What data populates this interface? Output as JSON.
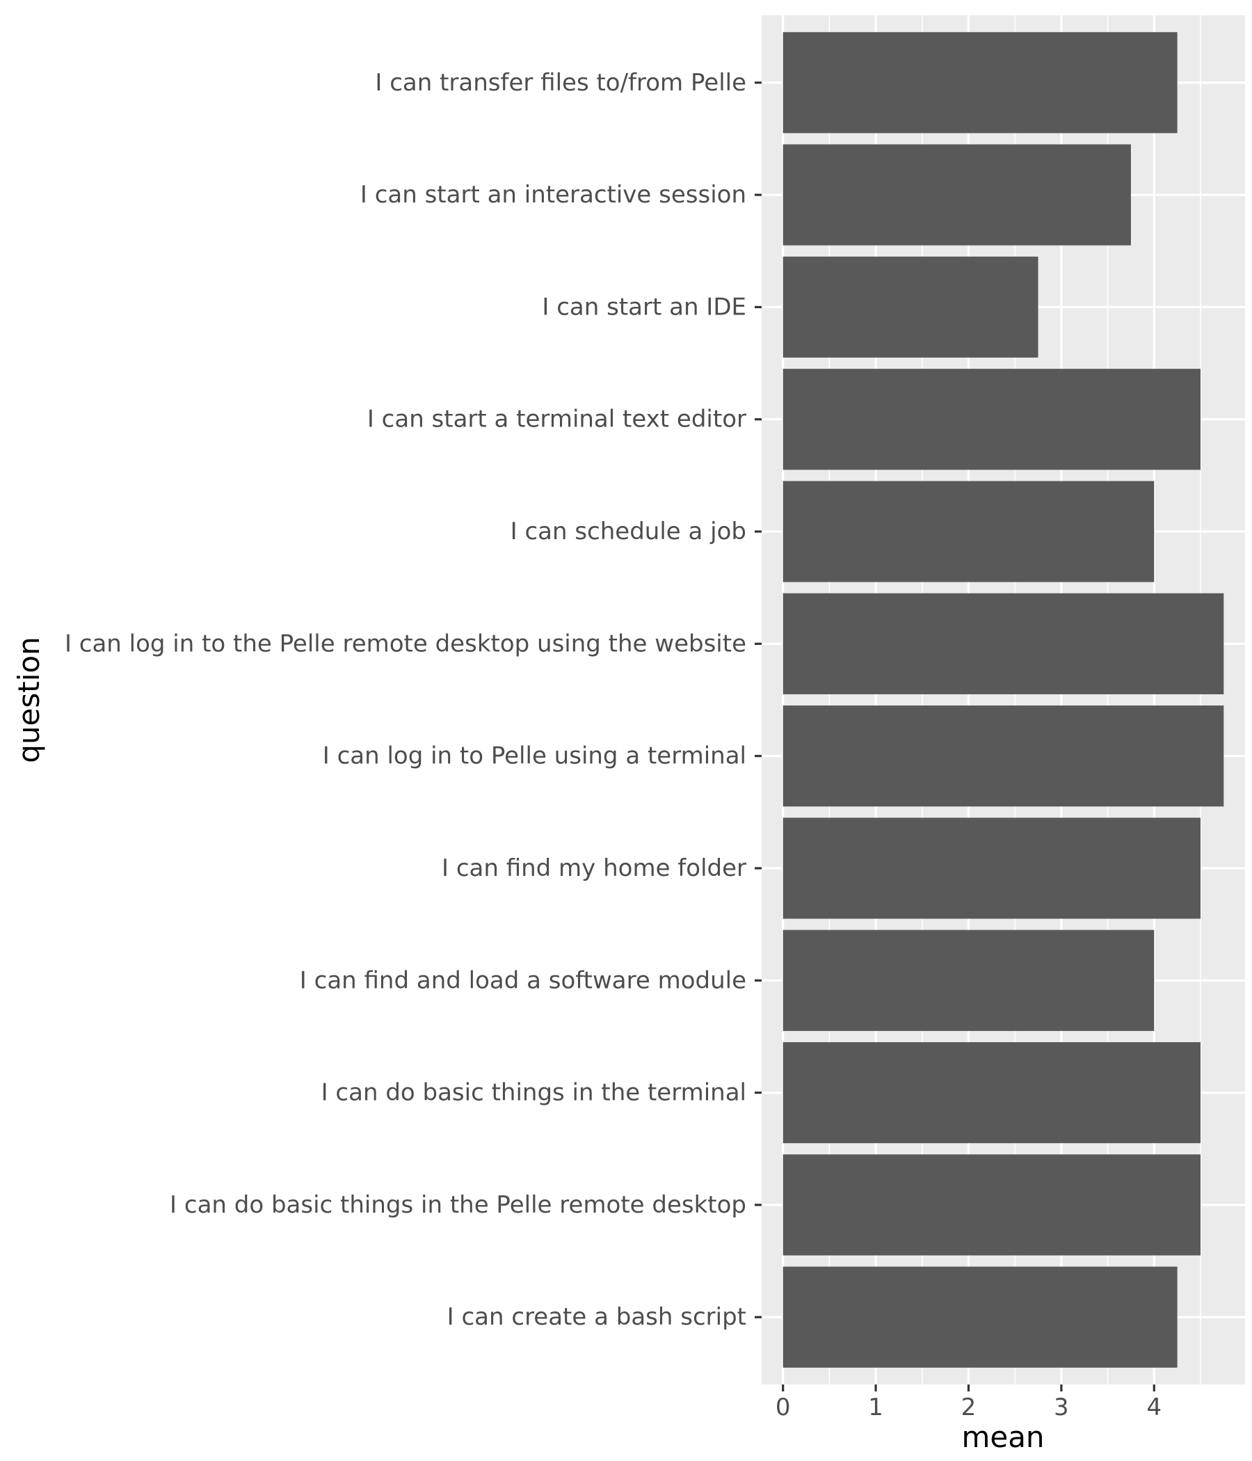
{
  "chart_data": {
    "type": "bar",
    "orientation": "horizontal",
    "xlabel": "mean",
    "ylabel": "question",
    "xlim": [
      -0.23,
      4.98
    ],
    "x_ticks": [
      "0",
      "1",
      "2",
      "3",
      "4"
    ],
    "grid": true,
    "legend": "none",
    "colors": {
      "panel": "#ebebeb",
      "bar": "#595959",
      "grid": "#ffffff",
      "tick": "#333333"
    },
    "categories": [
      "I can transfer files to/from Pelle",
      "I can start an interactive session",
      "I can start an IDE",
      "I can start a terminal text editor",
      "I can schedule a job",
      "I can log in to the Pelle remote desktop using the website",
      "I can log in to Pelle using a terminal",
      "I can find my home folder",
      "I can find and load a software module",
      "I can do basic things in the terminal",
      "I can do basic things in the Pelle remote desktop",
      "I can create a bash script"
    ],
    "values": [
      4.25,
      3.75,
      2.75,
      4.5,
      4.0,
      4.75,
      4.75,
      4.5,
      4.0,
      4.5,
      4.5,
      4.25
    ]
  }
}
